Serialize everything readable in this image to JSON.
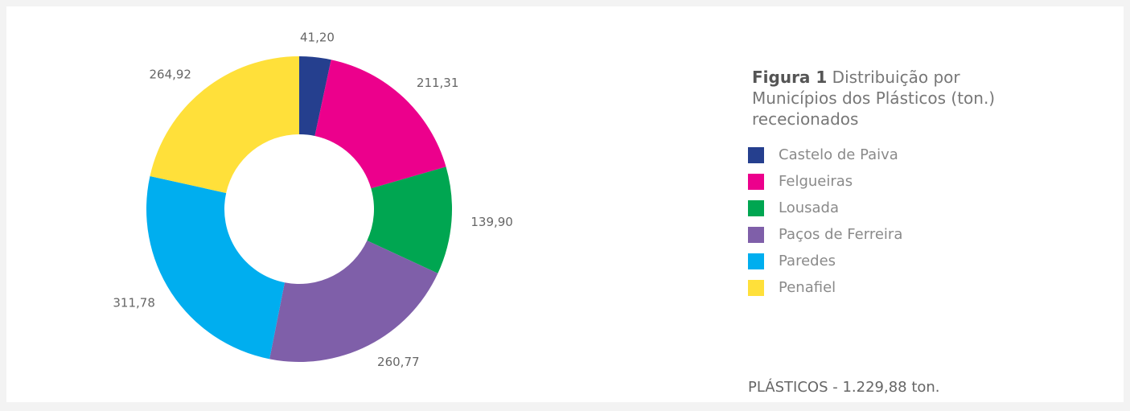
{
  "chart_data": {
    "type": "donut",
    "figure_label": "Figura 1",
    "title": "Distribuição por Municípios dos Plásticos (ton.) rececionados",
    "categories": [
      "Castelo de Paiva",
      "Felgueiras",
      "Lousada",
      "Paços de Ferreira",
      "Paredes",
      "Penafiel"
    ],
    "values": [
      41.2,
      211.31,
      139.9,
      260.77,
      311.78,
      264.92
    ],
    "value_labels": [
      "41,20",
      "211,31",
      "139,90",
      "260,77",
      "311,78",
      "264,92"
    ],
    "colors": [
      "#253f8e",
      "#ec008c",
      "#00a651",
      "#7f5fa9",
      "#00aeef",
      "#ffe03a"
    ],
    "annotation": "PLÁSTICOS - 1.229,88 ton.",
    "legend": "right"
  }
}
